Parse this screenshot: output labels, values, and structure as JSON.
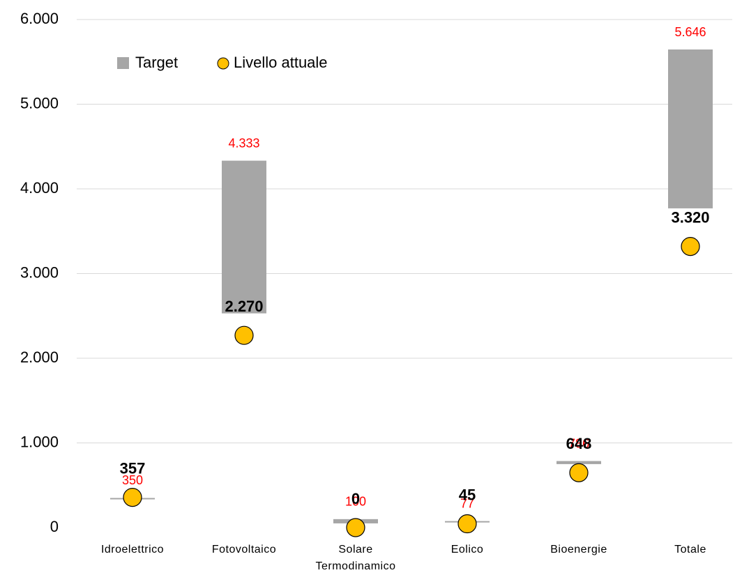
{
  "chart_data": {
    "type": "range_bar_dot",
    "categories": [
      "Idroelettrico",
      "Fotovoltaico",
      "Solare Termodinamico",
      "Eolico",
      "Bioenergie",
      "Totale"
    ],
    "series": [
      {
        "name": "Target",
        "color": "#a6a6a6",
        "label_color": "#ff0000",
        "values": [
          350,
          4333,
          100,
          77,
          786,
          5646
        ],
        "starts": [
          340,
          2530,
          50,
          67,
          750,
          3770
        ],
        "value_labels": [
          "350",
          "4.333",
          "100",
          "77",
          "786",
          "5.646"
        ]
      },
      {
        "name": "Livello attuale",
        "color": "#ffc000",
        "values": [
          357,
          2270,
          0,
          45,
          648,
          3320
        ],
        "value_labels": [
          "357",
          "2.270",
          "0",
          "45",
          "648",
          "3.320"
        ]
      }
    ],
    "ylim": [
      0,
      6000
    ],
    "yticks": [
      0,
      {
        "value": 1000,
        "label": "1.000"
      },
      {
        "value": 2000,
        "label": "2.000"
      },
      {
        "value": 3000,
        "label": "3.000"
      },
      {
        "value": 4000,
        "label": "4.000"
      },
      {
        "value": 5000,
        "label": "5.000"
      },
      {
        "value": 6000,
        "label": "6.000"
      }
    ],
    "grid": true,
    "legend": "top-left"
  }
}
